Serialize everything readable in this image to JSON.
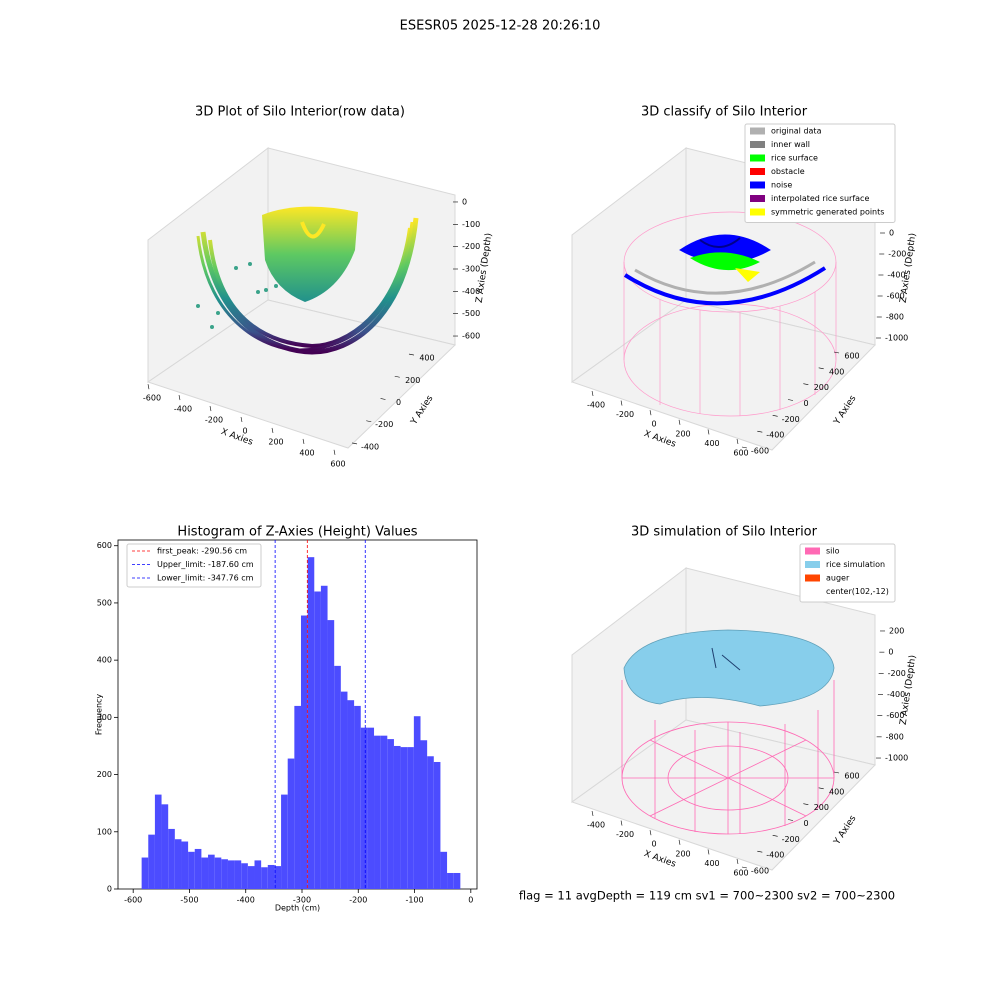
{
  "title": "ESESR05 2025-12-28 20:26:10",
  "footer": "flag = 11  avgDepth = 119 cm  sv1 = 700~2300  sv2 = 700~2300",
  "chart_data": [
    {
      "type": "scatter3d",
      "title": "3D Plot of Silo Interior(row data)",
      "xlabel": "X Axies",
      "ylabel": "Y Axies",
      "zlabel": "Z Axies (Depth)",
      "xlim": [
        -700,
        700
      ],
      "xticks": [
        -600,
        -400,
        -200,
        0,
        200,
        400,
        600
      ],
      "ylim": [
        -500,
        500
      ],
      "yticks": [
        -400,
        -200,
        0,
        200,
        400
      ],
      "zlim": [
        -650,
        20
      ],
      "zticks": [
        -600,
        -500,
        -400,
        -300,
        -200,
        -100,
        0
      ]
    },
    {
      "type": "scatter3d",
      "title": "3D classify of Silo Interior",
      "xlabel": "X Axies",
      "ylabel": "Y Axies",
      "zlabel": "Z Axies (Depth)",
      "xlim": [
        -550,
        700
      ],
      "xticks": [
        -400,
        -200,
        0,
        200,
        400,
        600
      ],
      "ylim": [
        -700,
        700
      ],
      "yticks": [
        -600,
        -400,
        -200,
        0,
        200,
        400,
        600
      ],
      "zlim": [
        -1080,
        120
      ],
      "zticks": [
        -1000,
        -800,
        -600,
        -400,
        -200,
        0
      ],
      "series": [
        {
          "name": "original data",
          "color": "#b0b0b0"
        },
        {
          "name": "inner wall",
          "color": "#808080"
        },
        {
          "name": "rice surface",
          "color": "#00ff00"
        },
        {
          "name": "obstacle",
          "color": "#ff0000"
        },
        {
          "name": "noise",
          "color": "#0000ff"
        },
        {
          "name": "interpolated rice surface",
          "color": "#800080"
        },
        {
          "name": "symmetric generated points",
          "color": "#ffff00"
        }
      ]
    },
    {
      "type": "histogram",
      "title": "Histogram of Z-Axies (Height) Values",
      "xlabel": "Depth (cm)",
      "ylabel": "Frequency",
      "color": "#4c4cff",
      "bins": [
        -585,
        -573.2,
        -561.4,
        -549.6,
        -537.8,
        -526,
        -514.2,
        -502.4,
        -490.6,
        -478.8,
        -467,
        -455.2,
        -443.4,
        -431.6,
        -419.8,
        -408,
        -396.2,
        -384.4,
        -372.6,
        -360.8,
        -349,
        -337.2,
        -325.4,
        -313.6,
        -301.8,
        -290,
        -278.2,
        -266.4,
        -254.6,
        -242.8,
        -231,
        -219.2,
        -207.4,
        -195.6,
        -183.8,
        -172,
        -160.2,
        -148.4,
        -136.6,
        -124.8,
        -113,
        -101.2,
        -89.4,
        -77.6,
        -65.8,
        -54,
        -42.2,
        -30.4,
        -18.6
      ],
      "values": [
        55,
        95,
        165,
        148,
        105,
        87,
        83,
        65,
        70,
        55,
        60,
        55,
        52,
        50,
        50,
        45,
        40,
        50,
        38,
        42,
        40,
        165,
        228,
        320,
        478,
        580,
        520,
        530,
        470,
        390,
        345,
        330,
        320,
        282,
        282,
        268,
        268,
        262,
        250,
        248,
        248,
        302,
        260,
        232,
        222,
        65,
        28,
        28
      ],
      "xlim": [
        -627,
        11
      ],
      "xticks": [
        -600,
        -500,
        -400,
        -300,
        -200,
        -100,
        0
      ],
      "ylim": [
        0,
        610
      ],
      "yticks": [
        0,
        100,
        200,
        300,
        400,
        500,
        600
      ],
      "lines": [
        {
          "label": "first_peak: -290.56 cm",
          "value": -290.56,
          "color": "#ff0000"
        },
        {
          "label": "Upper_limit: -187.60 cm",
          "value": -187.6,
          "color": "#0000ff"
        },
        {
          "label": "Lower_limit: -347.76 cm",
          "value": -347.76,
          "color": "#0000ff"
        }
      ]
    },
    {
      "type": "surface3d",
      "title": "3D simulation of Silo Interior",
      "xlabel": "X Axies",
      "ylabel": "Y Axies",
      "zlabel": "Z Axies (Depth)",
      "xlim": [
        -550,
        700
      ],
      "xticks": [
        -400,
        -200,
        0,
        200,
        400,
        600
      ],
      "ylim": [
        -700,
        700
      ],
      "yticks": [
        -600,
        -400,
        -200,
        0,
        200,
        400,
        600
      ],
      "zlim": [
        -1080,
        280
      ],
      "zticks": [
        -1000,
        -800,
        -600,
        -400,
        -200,
        0,
        200
      ],
      "series": [
        {
          "name": "silo",
          "color": "#ff69b4"
        },
        {
          "name": "rice simulation",
          "color": "#87ceeb"
        },
        {
          "name": "auger",
          "color": "#ff4500"
        },
        {
          "name": "center(102,-12)"
        }
      ]
    }
  ]
}
